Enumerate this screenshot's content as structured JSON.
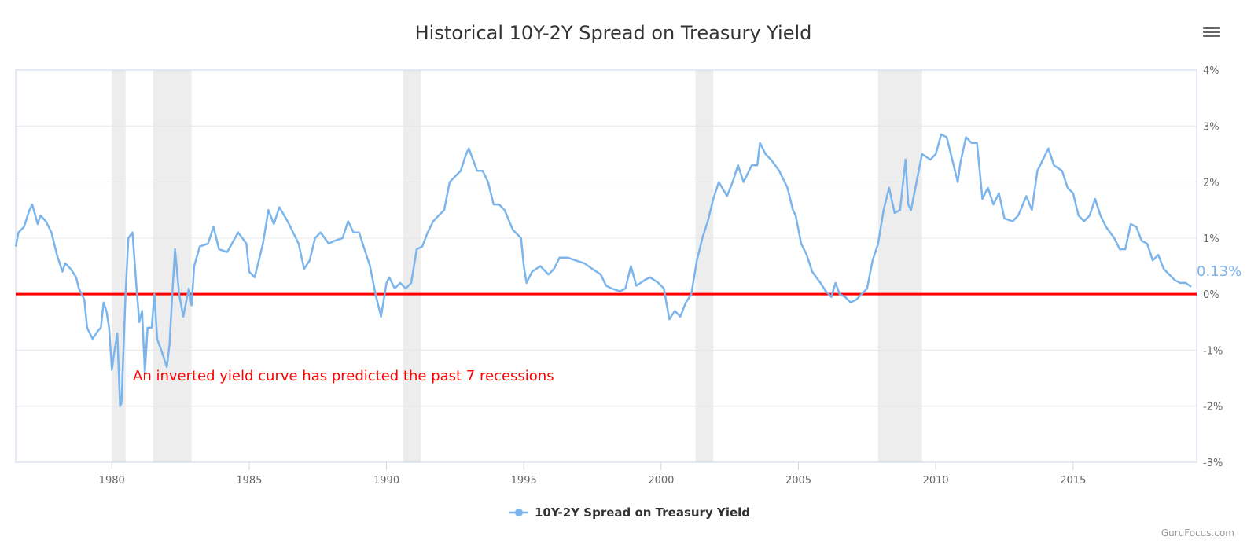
{
  "title": "Historical 10Y-2Y Spread on Treasury Yield",
  "credit": "GuruFocus.com",
  "menu_icon": "hamburger-menu-icon",
  "annotation": "An inverted yield curve has predicted the past 7 recessions",
  "last_value_label": "0.13%",
  "colors": {
    "series": "#7cb5ec",
    "zero_line": "#ff0000",
    "annotation": "#ff0000",
    "recession_band": "#ededed",
    "grid": "#e6e6e6",
    "axis": "#ccd6eb"
  },
  "chart_data": {
    "type": "line",
    "title": "Historical 10Y-2Y Spread on Treasury Yield",
    "xlabel": "",
    "ylabel": "",
    "xlim": [
      1976.5,
      2019.5
    ],
    "ylim": [
      -3,
      4
    ],
    "x_ticks": [
      1980,
      1985,
      1990,
      1995,
      2000,
      2005,
      2010,
      2015
    ],
    "y_ticks": [
      -3,
      -2,
      -1,
      0,
      1,
      2,
      3,
      4
    ],
    "y_tick_labels": [
      "-3%",
      "-2%",
      "-1%",
      "0%",
      "1%",
      "2%",
      "3%",
      "4%"
    ],
    "y_axis_position": "right",
    "grid": true,
    "legend_position": "bottom-center",
    "reference_line": {
      "y": 0
    },
    "recessions": [
      [
        1980.0,
        1980.5
      ],
      [
        1981.5,
        1982.9
      ],
      [
        1990.6,
        1991.25
      ],
      [
        2001.25,
        2001.9
      ],
      [
        2007.9,
        2009.5
      ]
    ],
    "series": [
      {
        "name": "10Y-2Y Spread on Treasury Yield",
        "points": [
          [
            1976.5,
            0.85
          ],
          [
            1976.6,
            1.1
          ],
          [
            1976.8,
            1.2
          ],
          [
            1977.0,
            1.5
          ],
          [
            1977.1,
            1.6
          ],
          [
            1977.3,
            1.25
          ],
          [
            1977.4,
            1.4
          ],
          [
            1977.6,
            1.3
          ],
          [
            1977.8,
            1.1
          ],
          [
            1978.0,
            0.7
          ],
          [
            1978.2,
            0.4
          ],
          [
            1978.3,
            0.55
          ],
          [
            1978.5,
            0.45
          ],
          [
            1978.7,
            0.3
          ],
          [
            1978.8,
            0.1
          ],
          [
            1979.0,
            -0.1
          ],
          [
            1979.1,
            -0.6
          ],
          [
            1979.3,
            -0.8
          ],
          [
            1979.5,
            -0.65
          ],
          [
            1979.6,
            -0.6
          ],
          [
            1979.7,
            -0.15
          ],
          [
            1979.8,
            -0.3
          ],
          [
            1979.9,
            -0.6
          ],
          [
            1980.0,
            -1.35
          ],
          [
            1980.1,
            -1.0
          ],
          [
            1980.2,
            -0.7
          ],
          [
            1980.3,
            -2.0
          ],
          [
            1980.35,
            -1.95
          ],
          [
            1980.5,
            0.0
          ],
          [
            1980.6,
            1.0
          ],
          [
            1980.75,
            1.1
          ],
          [
            1980.9,
            0.1
          ],
          [
            1981.0,
            -0.5
          ],
          [
            1981.1,
            -0.3
          ],
          [
            1981.2,
            -1.4
          ],
          [
            1981.3,
            -0.6
          ],
          [
            1981.45,
            -0.6
          ],
          [
            1981.55,
            0.0
          ],
          [
            1981.65,
            -0.8
          ],
          [
            1981.8,
            -1.0
          ],
          [
            1982.0,
            -1.3
          ],
          [
            1982.1,
            -0.9
          ],
          [
            1982.2,
            0.0
          ],
          [
            1982.3,
            0.8
          ],
          [
            1982.45,
            0.0
          ],
          [
            1982.6,
            -0.4
          ],
          [
            1982.8,
            0.1
          ],
          [
            1982.9,
            -0.2
          ],
          [
            1983.0,
            0.5
          ],
          [
            1983.2,
            0.85
          ],
          [
            1983.5,
            0.9
          ],
          [
            1983.7,
            1.2
          ],
          [
            1983.9,
            0.8
          ],
          [
            1984.2,
            0.75
          ],
          [
            1984.6,
            1.1
          ],
          [
            1984.9,
            0.9
          ],
          [
            1985.0,
            0.4
          ],
          [
            1985.2,
            0.3
          ],
          [
            1985.5,
            0.9
          ],
          [
            1985.7,
            1.5
          ],
          [
            1985.9,
            1.25
          ],
          [
            1986.1,
            1.55
          ],
          [
            1986.4,
            1.3
          ],
          [
            1986.6,
            1.1
          ],
          [
            1986.8,
            0.9
          ],
          [
            1987.0,
            0.45
          ],
          [
            1987.2,
            0.6
          ],
          [
            1987.4,
            1.0
          ],
          [
            1987.6,
            1.1
          ],
          [
            1987.9,
            0.9
          ],
          [
            1988.1,
            0.95
          ],
          [
            1988.4,
            1.0
          ],
          [
            1988.6,
            1.3
          ],
          [
            1988.8,
            1.1
          ],
          [
            1989.0,
            1.1
          ],
          [
            1989.2,
            0.8
          ],
          [
            1989.4,
            0.5
          ],
          [
            1989.6,
            0.0
          ],
          [
            1989.8,
            -0.4
          ],
          [
            1990.0,
            0.2
          ],
          [
            1990.1,
            0.3
          ],
          [
            1990.3,
            0.1
          ],
          [
            1990.5,
            0.2
          ],
          [
            1990.7,
            0.1
          ],
          [
            1990.9,
            0.2
          ],
          [
            1991.1,
            0.8
          ],
          [
            1991.3,
            0.85
          ],
          [
            1991.5,
            1.1
          ],
          [
            1991.7,
            1.3
          ],
          [
            1991.9,
            1.4
          ],
          [
            1992.1,
            1.5
          ],
          [
            1992.3,
            2.0
          ],
          [
            1992.5,
            2.1
          ],
          [
            1992.7,
            2.2
          ],
          [
            1992.9,
            2.5
          ],
          [
            1993.0,
            2.6
          ],
          [
            1993.3,
            2.2
          ],
          [
            1993.5,
            2.2
          ],
          [
            1993.7,
            2.0
          ],
          [
            1993.9,
            1.6
          ],
          [
            1994.1,
            1.6
          ],
          [
            1994.3,
            1.5
          ],
          [
            1994.6,
            1.15
          ],
          [
            1994.9,
            1.0
          ],
          [
            1995.0,
            0.5
          ],
          [
            1995.1,
            0.2
          ],
          [
            1995.3,
            0.4
          ],
          [
            1995.6,
            0.5
          ],
          [
            1995.9,
            0.35
          ],
          [
            1996.1,
            0.45
          ],
          [
            1996.3,
            0.65
          ],
          [
            1996.6,
            0.65
          ],
          [
            1996.9,
            0.6
          ],
          [
            1997.2,
            0.55
          ],
          [
            1997.5,
            0.45
          ],
          [
            1997.8,
            0.35
          ],
          [
            1998.0,
            0.15
          ],
          [
            1998.2,
            0.1
          ],
          [
            1998.5,
            0.05
          ],
          [
            1998.7,
            0.1
          ],
          [
            1998.9,
            0.5
          ],
          [
            1999.1,
            0.15
          ],
          [
            1999.4,
            0.25
          ],
          [
            1999.6,
            0.3
          ],
          [
            1999.9,
            0.2
          ],
          [
            2000.1,
            0.1
          ],
          [
            2000.3,
            -0.45
          ],
          [
            2000.5,
            -0.3
          ],
          [
            2000.7,
            -0.4
          ],
          [
            2000.9,
            -0.15
          ],
          [
            2001.1,
            0.0
          ],
          [
            2001.3,
            0.6
          ],
          [
            2001.5,
            1.0
          ],
          [
            2001.7,
            1.3
          ],
          [
            2001.9,
            1.7
          ],
          [
            2002.1,
            2.0
          ],
          [
            2002.4,
            1.75
          ],
          [
            2002.6,
            2.0
          ],
          [
            2002.8,
            2.3
          ],
          [
            2003.0,
            2.0
          ],
          [
            2003.3,
            2.3
          ],
          [
            2003.5,
            2.3
          ],
          [
            2003.6,
            2.7
          ],
          [
            2003.8,
            2.5
          ],
          [
            2004.0,
            2.4
          ],
          [
            2004.3,
            2.2
          ],
          [
            2004.6,
            1.9
          ],
          [
            2004.8,
            1.5
          ],
          [
            2004.9,
            1.4
          ],
          [
            2005.1,
            0.9
          ],
          [
            2005.3,
            0.7
          ],
          [
            2005.5,
            0.4
          ],
          [
            2005.8,
            0.2
          ],
          [
            2006.0,
            0.05
          ],
          [
            2006.2,
            -0.05
          ],
          [
            2006.35,
            0.2
          ],
          [
            2006.5,
            0.0
          ],
          [
            2006.7,
            -0.05
          ],
          [
            2006.9,
            -0.15
          ],
          [
            2007.1,
            -0.1
          ],
          [
            2007.3,
            0.0
          ],
          [
            2007.5,
            0.1
          ],
          [
            2007.7,
            0.6
          ],
          [
            2007.9,
            0.9
          ],
          [
            2008.1,
            1.5
          ],
          [
            2008.3,
            1.9
          ],
          [
            2008.5,
            1.45
          ],
          [
            2008.7,
            1.5
          ],
          [
            2008.9,
            2.4
          ],
          [
            2009.0,
            1.6
          ],
          [
            2009.1,
            1.5
          ],
          [
            2009.3,
            2.0
          ],
          [
            2009.5,
            2.5
          ],
          [
            2009.8,
            2.4
          ],
          [
            2010.0,
            2.5
          ],
          [
            2010.2,
            2.85
          ],
          [
            2010.4,
            2.8
          ],
          [
            2010.6,
            2.4
          ],
          [
            2010.8,
            2.0
          ],
          [
            2010.9,
            2.35
          ],
          [
            2011.1,
            2.8
          ],
          [
            2011.3,
            2.7
          ],
          [
            2011.5,
            2.7
          ],
          [
            2011.7,
            1.7
          ],
          [
            2011.9,
            1.9
          ],
          [
            2012.1,
            1.6
          ],
          [
            2012.3,
            1.8
          ],
          [
            2012.5,
            1.35
          ],
          [
            2012.8,
            1.3
          ],
          [
            2013.0,
            1.4
          ],
          [
            2013.3,
            1.75
          ],
          [
            2013.5,
            1.5
          ],
          [
            2013.7,
            2.2
          ],
          [
            2013.9,
            2.4
          ],
          [
            2014.1,
            2.6
          ],
          [
            2014.3,
            2.3
          ],
          [
            2014.6,
            2.2
          ],
          [
            2014.8,
            1.9
          ],
          [
            2015.0,
            1.8
          ],
          [
            2015.2,
            1.4
          ],
          [
            2015.4,
            1.3
          ],
          [
            2015.6,
            1.4
          ],
          [
            2015.8,
            1.7
          ],
          [
            2016.0,
            1.4
          ],
          [
            2016.2,
            1.2
          ],
          [
            2016.5,
            1.0
          ],
          [
            2016.7,
            0.8
          ],
          [
            2016.9,
            0.8
          ],
          [
            2017.1,
            1.25
          ],
          [
            2017.3,
            1.2
          ],
          [
            2017.5,
            0.95
          ],
          [
            2017.7,
            0.9
          ],
          [
            2017.9,
            0.6
          ],
          [
            2018.1,
            0.7
          ],
          [
            2018.3,
            0.45
          ],
          [
            2018.5,
            0.35
          ],
          [
            2018.7,
            0.25
          ],
          [
            2018.9,
            0.2
          ],
          [
            2019.1,
            0.2
          ],
          [
            2019.3,
            0.13
          ]
        ]
      }
    ]
  },
  "legend": {
    "label": "10Y-2Y Spread on Treasury Yield"
  }
}
